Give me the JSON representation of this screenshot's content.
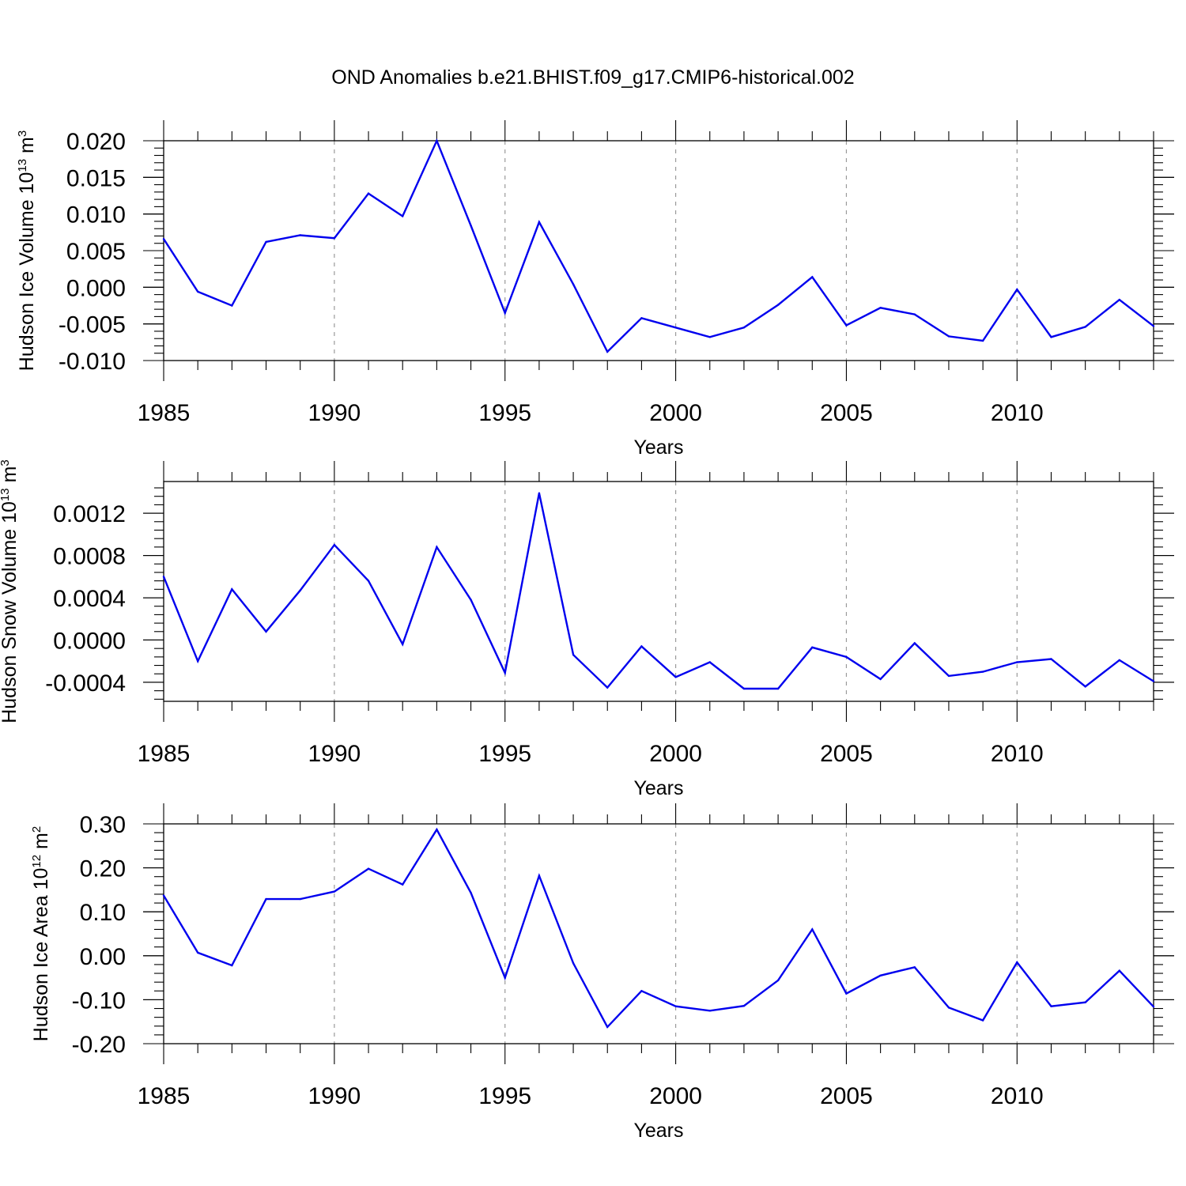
{
  "figure": {
    "title": "OND Anomalies b.e21.BHIST.f09_g17.CMIP6-historical.002"
  },
  "chart_data": [
    {
      "type": "line",
      "ylabel": "Hudson Ice Volume",
      "yunit_base": "10",
      "yunit_exp": "13",
      "yunit_unit": "m",
      "yunit_unit_exp": "3",
      "xlabel": "Years",
      "xlim": [
        1985,
        2014
      ],
      "ylim": [
        -0.01,
        0.02
      ],
      "y_ticks": [
        "0.020",
        "0.015",
        "0.010",
        "0.005",
        "0.000",
        "-0.005",
        "-0.010"
      ],
      "y_tick_values": [
        0.02,
        0.015,
        0.01,
        0.005,
        0.0,
        -0.005,
        -0.01
      ],
      "x_ticks": [
        "1985",
        "1990",
        "1995",
        "2000",
        "2005",
        "2010"
      ],
      "x_tick_values": [
        1985,
        1990,
        1995,
        2000,
        2005,
        2010
      ],
      "grid": "vertical dashed at major x ticks",
      "line_color": "#0000ee",
      "x": [
        1985,
        1986,
        1987,
        1988,
        1989,
        1990,
        1991,
        1992,
        1993,
        1994,
        1995,
        1996,
        1997,
        1998,
        1999,
        2000,
        2001,
        2002,
        2003,
        2004,
        2005,
        2006,
        2007,
        2008,
        2009,
        2010,
        2011,
        2012,
        2013,
        2014
      ],
      "y": [
        0.0066,
        -0.0006,
        -0.0025,
        0.0062,
        0.0071,
        0.0067,
        0.0128,
        0.0097,
        0.02,
        0.0084,
        -0.0035,
        0.0089,
        0.0004,
        -0.0088,
        -0.0042,
        -0.0055,
        -0.0068,
        -0.0055,
        -0.0024,
        0.0014,
        -0.0052,
        -0.0028,
        -0.0037,
        -0.0067,
        -0.0073,
        -0.0003,
        -0.0068,
        -0.0054,
        -0.0017,
        -0.0053
      ]
    },
    {
      "type": "line",
      "ylabel": "Hudson Snow Volume",
      "yunit_base": "10",
      "yunit_exp": "13",
      "yunit_unit": "m",
      "yunit_unit_exp": "3",
      "xlabel": "Years",
      "xlim": [
        1985,
        2014
      ],
      "ylim": [
        -0.00058,
        0.0015
      ],
      "y_ticks": [
        "0.0012",
        "0.0008",
        "0.0004",
        "0.0000",
        "-0.0004"
      ],
      "y_tick_values": [
        0.0012,
        0.0008,
        0.0004,
        0.0,
        -0.0004
      ],
      "x_ticks": [
        "1985",
        "1990",
        "1995",
        "2000",
        "2005",
        "2010"
      ],
      "x_tick_values": [
        1985,
        1990,
        1995,
        2000,
        2005,
        2010
      ],
      "grid": "vertical dashed at major x ticks",
      "line_color": "#0000ee",
      "x": [
        1985,
        1986,
        1987,
        1988,
        1989,
        1990,
        1991,
        1992,
        1993,
        1994,
        1995,
        1996,
        1997,
        1998,
        1999,
        2000,
        2001,
        2002,
        2003,
        2004,
        2005,
        2006,
        2007,
        2008,
        2009,
        2010,
        2011,
        2012,
        2013,
        2014
      ],
      "y": [
        0.0006,
        -0.0002,
        0.00048,
        8e-05,
        0.00047,
        0.0009,
        0.00056,
        -4e-05,
        0.00088,
        0.00038,
        -0.00031,
        0.00139,
        -0.00014,
        -0.00045,
        -6e-05,
        -0.00035,
        -0.00021,
        -0.00046,
        -0.00046,
        -7e-05,
        -0.00016,
        -0.00037,
        -3e-05,
        -0.00034,
        -0.0003,
        -0.00021,
        -0.00018,
        -0.00044,
        -0.00019,
        -0.00039
      ]
    },
    {
      "type": "line",
      "ylabel": "Hudson Ice Area",
      "yunit_base": "10",
      "yunit_exp": "12",
      "yunit_unit": "m",
      "yunit_unit_exp": "2",
      "xlabel": "Years",
      "xlim": [
        1985,
        2014
      ],
      "ylim": [
        -0.2,
        0.3
      ],
      "y_ticks": [
        "0.30",
        "0.20",
        "0.10",
        "0.00",
        "-0.10",
        "-0.20"
      ],
      "y_tick_values": [
        0.3,
        0.2,
        0.1,
        0.0,
        -0.1,
        -0.2
      ],
      "x_ticks": [
        "1985",
        "1990",
        "1995",
        "2000",
        "2005",
        "2010"
      ],
      "x_tick_values": [
        1985,
        1990,
        1995,
        2000,
        2005,
        2010
      ],
      "grid": "vertical dashed at major x ticks",
      "line_color": "#0000ee",
      "x": [
        1985,
        1986,
        1987,
        1988,
        1989,
        1990,
        1991,
        1992,
        1993,
        1994,
        1995,
        1996,
        1997,
        1998,
        1999,
        2000,
        2001,
        2002,
        2003,
        2004,
        2005,
        2006,
        2007,
        2008,
        2009,
        2010,
        2011,
        2012,
        2013,
        2014
      ],
      "y": [
        0.137,
        0.007,
        -0.022,
        0.129,
        0.129,
        0.146,
        0.198,
        0.162,
        0.287,
        0.143,
        -0.05,
        0.182,
        -0.017,
        -0.162,
        -0.08,
        -0.115,
        -0.125,
        -0.114,
        -0.056,
        0.06,
        -0.086,
        -0.045,
        -0.026,
        -0.118,
        -0.147,
        -0.015,
        -0.115,
        -0.106,
        -0.034,
        -0.116
      ]
    }
  ]
}
